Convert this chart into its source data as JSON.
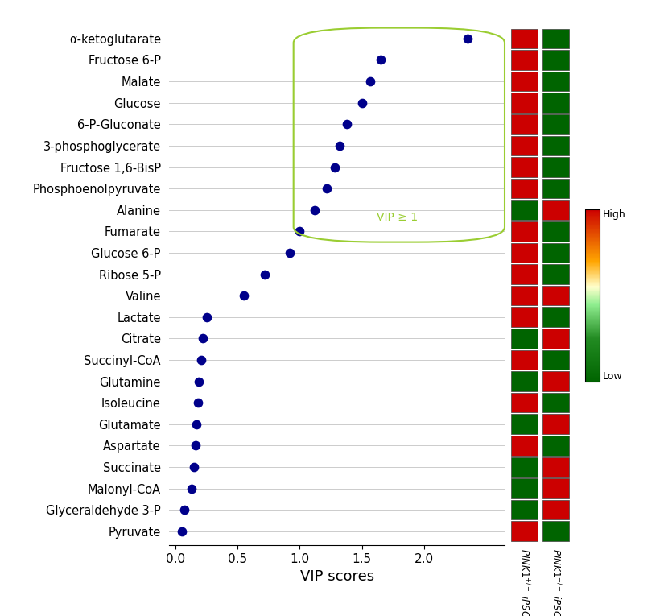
{
  "metabolites": [
    "α-ketoglutarate",
    "Fructose 6-P",
    "Malate",
    "Glucose",
    "6-P-Gluconate",
    "3-phosphoglycerate",
    "Fructose 1,6-BisP",
    "Phosphoenolpyruvate",
    "Alanine",
    "Fumarate",
    "Glucose 6-P",
    "Ribose 5-P",
    "Valine",
    "Lactate",
    "Citrate",
    "Succinyl-CoA",
    "Glutamine",
    "Isoleucine",
    "Glutamate",
    "Aspartate",
    "Succinate",
    "Malonyl-CoA",
    "Glyceraldehyde 3-P",
    "Pyruvate"
  ],
  "vip_scores": [
    2.35,
    1.65,
    1.57,
    1.5,
    1.38,
    1.32,
    1.28,
    1.22,
    1.12,
    1.0,
    0.92,
    0.72,
    0.55,
    0.25,
    0.22,
    0.21,
    0.19,
    0.18,
    0.17,
    0.16,
    0.15,
    0.13,
    0.07,
    0.05
  ],
  "heatmap_pink1_wt": [
    "red",
    "red",
    "red",
    "red",
    "red",
    "red",
    "red",
    "red",
    "green",
    "red",
    "red",
    "red",
    "red",
    "red",
    "green",
    "red",
    "green",
    "red",
    "green",
    "red",
    "green",
    "green",
    "green",
    "red"
  ],
  "heatmap_pink1_ko": [
    "green",
    "green",
    "green",
    "green",
    "green",
    "green",
    "green",
    "green",
    "red",
    "green",
    "green",
    "green",
    "red",
    "green",
    "red",
    "green",
    "red",
    "green",
    "red",
    "green",
    "red",
    "red",
    "red",
    "green"
  ],
  "dot_color": "#00008B",
  "dot_size": 55,
  "xlabel": "VIP scores",
  "xlim": [
    -0.05,
    2.65
  ],
  "xticks": [
    0.0,
    0.5,
    1.0,
    1.5,
    2.0
  ],
  "vip_threshold": 1.0,
  "vip_label": "VIP ≥ 1",
  "heatmap_red": "#CC0000",
  "heatmap_green": "#006400",
  "colorbar_label_high": "High",
  "colorbar_label_low": "Low"
}
